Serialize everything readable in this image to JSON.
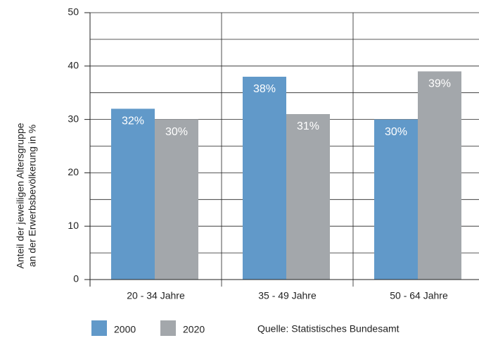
{
  "chart_data": {
    "type": "bar",
    "y_label": [
      "Anteil der jeweiligen Altersgruppe",
      "an der Erwerbsbevölkerung in %"
    ],
    "categories": [
      "20 - 34 Jahre",
      "35 - 49 Jahre",
      "50 - 64 Jahre"
    ],
    "series": [
      {
        "name": "2000",
        "color": "#6199c9",
        "values": [
          32,
          38,
          30
        ],
        "value_labels": [
          "32%",
          "38%",
          "30%"
        ]
      },
      {
        "name": "2020",
        "color": "#a3a7ab",
        "values": [
          30,
          31,
          39
        ],
        "value_labels": [
          "30%",
          "31%",
          "39%"
        ]
      }
    ],
    "ylim": [
      0,
      50
    ],
    "yticks": [
      0,
      10,
      20,
      30,
      40,
      50
    ],
    "grid": true,
    "minor_grid": true,
    "legend": "bottom",
    "source": "Quelle: Statistisches Bundesamt"
  }
}
